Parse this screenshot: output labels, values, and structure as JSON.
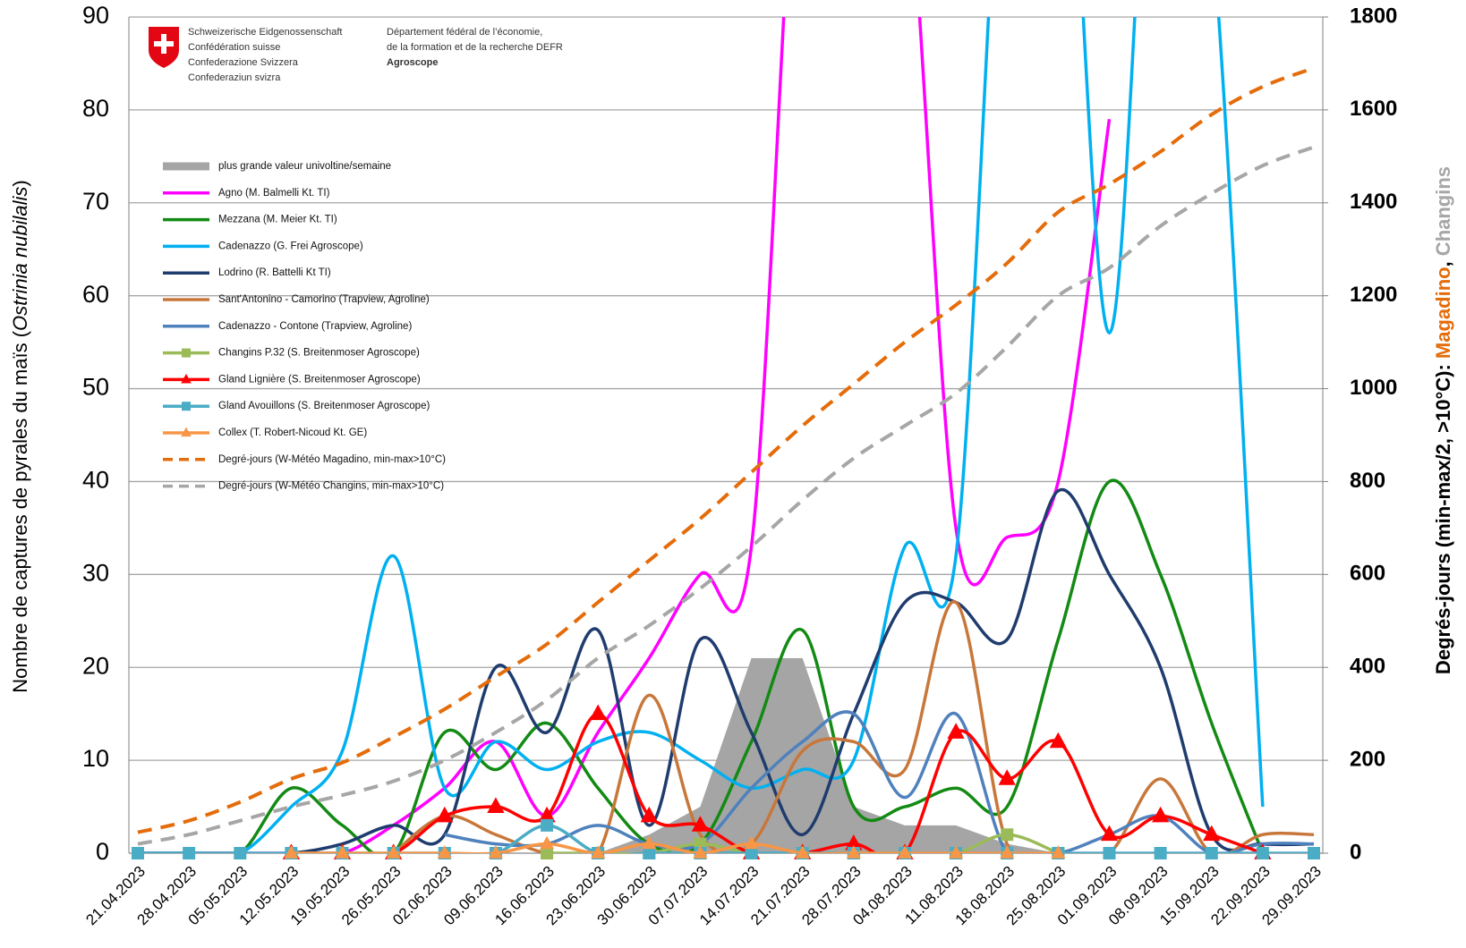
{
  "header": {
    "confederation": [
      "Schweizerische Eidgenossenschaft",
      "Confédération suisse",
      "Confederazione Svizzera",
      "Confederaziun svizra"
    ],
    "department": [
      "Département fédéral de l’économie,",
      "de la formation et de la recherche DEFR"
    ],
    "agency": "Agroscope"
  },
  "chart_data": {
    "type": "line",
    "smooth": true,
    "y_label": [
      "Nombre de captures de pyrales du maïs (",
      "Ostrinia nubilalis",
      ")"
    ],
    "y2_label": [
      {
        "text": "Degrés-jours (min-max/2, >10°C): ",
        "color": "#000000"
      },
      {
        "text": "Magadino",
        "color": "#e46c0a"
      },
      {
        "text": ", ",
        "color": "#000000"
      },
      {
        "text": "Changins",
        "color": "#a6a6a6"
      }
    ],
    "categories": [
      "21.04.2023",
      "28.04.2023",
      "05.05.2023",
      "12.05.2023",
      "19.05.2023",
      "26.05.2023",
      "02.06.2023",
      "09.06.2023",
      "16.06.2023",
      "23.06.2023",
      "30.06.2023",
      "07.07.2023",
      "14.07.2023",
      "21.07.2023",
      "28.07.2023",
      "04.08.2023",
      "11.08.2023",
      "18.08.2023",
      "25.08.2023",
      "01.09.2023",
      "08.09.2023",
      "15.09.2023",
      "22.09.2023",
      "29.09.2023"
    ],
    "ylim": [
      0,
      90
    ],
    "yticks": [
      0,
      10,
      20,
      30,
      40,
      50,
      60,
      70,
      80,
      90
    ],
    "y2lim": [
      0,
      1800
    ],
    "y2ticks": [
      0,
      200,
      400,
      600,
      800,
      1000,
      1200,
      1400,
      1600,
      1800
    ],
    "grid": true,
    "series": [
      {
        "name": "plus grande valeur univoltine/semaine",
        "type": "area",
        "color": "#a5a5a5",
        "values": [
          0,
          0,
          0,
          0,
          0,
          0,
          0,
          0,
          0,
          0,
          2,
          5,
          21,
          21,
          5,
          3,
          3,
          1,
          0,
          null,
          null,
          null,
          null,
          null
        ]
      },
      {
        "name": "Agno (M. Balmelli Kt. TI)",
        "color": "#ff00ff",
        "values": [
          0,
          0,
          0,
          0,
          0,
          3,
          7,
          12,
          4,
          13,
          21,
          30,
          33,
          120,
          130,
          110,
          35,
          34,
          40,
          79,
          null,
          null,
          null,
          null
        ]
      },
      {
        "name": "Mezzana (M. Meier Kt. TI)",
        "color": "#138a13",
        "values": [
          0,
          0,
          0,
          7,
          3,
          0,
          13,
          9,
          14,
          7,
          1,
          1,
          12,
          24,
          5,
          5,
          7,
          5,
          23,
          40,
          30,
          14,
          0,
          null
        ]
      },
      {
        "name": "Cadenazzo (G. Frei Agroscope)",
        "color": "#00b0f0",
        "values": [
          0,
          0,
          0,
          5,
          11,
          32,
          7,
          12,
          9,
          12,
          13,
          10,
          7,
          9,
          10,
          33,
          32,
          120,
          130,
          56,
          130,
          100,
          5,
          null
        ]
      },
      {
        "name": "Lodrino (R. Battelli Kt TI)",
        "color": "#1f3c6e",
        "values": [
          0,
          0,
          0,
          0,
          1,
          3,
          2,
          20,
          13,
          24,
          3,
          23,
          13,
          2,
          15,
          27,
          27,
          23,
          39,
          30,
          20,
          2,
          1,
          1
        ]
      },
      {
        "name": "Sant'Antonino - Camorino (Trapview, Agroline)",
        "color": "#c8773a",
        "values": [
          null,
          null,
          null,
          null,
          null,
          0,
          4,
          2,
          0,
          0,
          17,
          2,
          1,
          11,
          12,
          9,
          27,
          1,
          0,
          0,
          8,
          0,
          2,
          2
        ]
      },
      {
        "name": "Cadenazzo - Contone (Trapview, Agroline)",
        "color": "#4f81bd",
        "values": [
          null,
          null,
          null,
          null,
          null,
          null,
          2,
          1,
          1,
          3,
          1,
          1,
          7,
          12,
          15,
          6,
          15,
          0,
          0,
          2,
          4,
          0,
          1,
          1
        ]
      },
      {
        "name": "Changins P.32 (S. Breitenmoser Agroscope)",
        "color": "#9bbb59",
        "marker": "square",
        "values": [
          null,
          null,
          null,
          null,
          null,
          null,
          null,
          null,
          0,
          0,
          0,
          1,
          0,
          0,
          0,
          0,
          0,
          2,
          0,
          null,
          null,
          null,
          null,
          null
        ]
      },
      {
        "name": "Gland Lignière (S. Breitenmoser Agroscope)",
        "color": "#ff0000",
        "marker": "triangle",
        "values": [
          null,
          null,
          null,
          0,
          0,
          0,
          4,
          5,
          4,
          15,
          4,
          3,
          0,
          0,
          1,
          0,
          13,
          8,
          12,
          2,
          4,
          2,
          0,
          null
        ]
      },
      {
        "name": "Gland Avouillons (S. Breitenmoser Agroscope)",
        "color": "#4bacc6",
        "marker": "square",
        "values": [
          0,
          0,
          0,
          0,
          0,
          0,
          0,
          0,
          3,
          0,
          0,
          0,
          0,
          0,
          0,
          0,
          0,
          0,
          0,
          0,
          0,
          0,
          0,
          0
        ]
      },
      {
        "name": "Collex (T. Robert-Nicoud Kt. GE)",
        "color": "#f79646",
        "marker": "triangle",
        "values": [
          null,
          null,
          null,
          0,
          0,
          0,
          0,
          0,
          1,
          0,
          1,
          0,
          1,
          0,
          0,
          0,
          0,
          0,
          0,
          null,
          null,
          null,
          null,
          null
        ]
      },
      {
        "name": "Degré-jours (W-Météo Magadino, min-max>10°C)",
        "color": "#e46c0a",
        "dash": true,
        "axis": "y2",
        "values": [
          45,
          70,
          110,
          160,
          195,
          250,
          310,
          380,
          450,
          540,
          630,
          720,
          820,
          920,
          1010,
          1100,
          1180,
          1270,
          1380,
          1440,
          1510,
          1590,
          1650,
          1690
        ]
      },
      {
        "name": "Degré-jours (W-Météo Changins, min-max>10°C)",
        "color": "#a6a6a6",
        "dash": true,
        "axis": "y2",
        "values": [
          20,
          40,
          70,
          100,
          125,
          155,
          200,
          260,
          330,
          420,
          490,
          570,
          660,
          760,
          850,
          920,
          990,
          1090,
          1200,
          1260,
          1350,
          1420,
          1480,
          1520
        ]
      }
    ]
  }
}
